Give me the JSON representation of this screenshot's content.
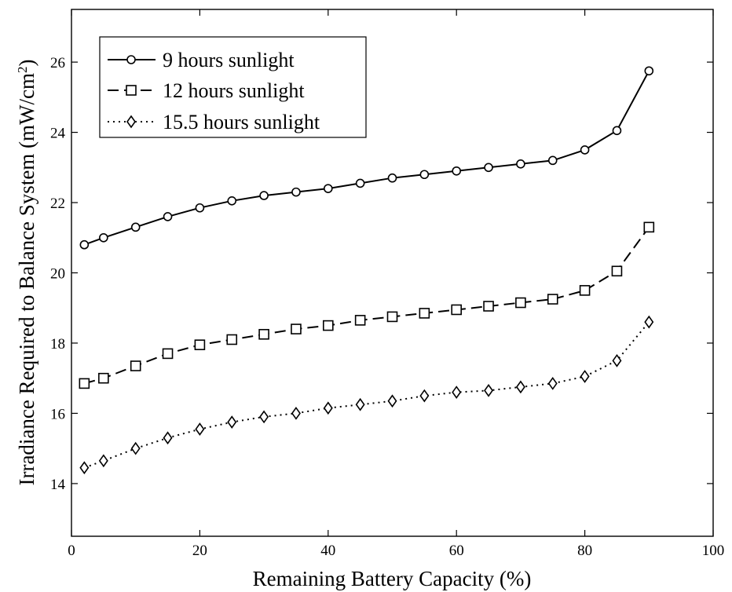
{
  "chart_data": {
    "type": "line",
    "title": "",
    "xlabel": "Remaining Battery Capacity (%)",
    "ylabel_main": "Irradiance Required to Balance System (mW/cm",
    "ylabel_sup": "2",
    "ylabel_close": ")",
    "xlim": [
      0,
      100
    ],
    "ylim": [
      12.5,
      27.5
    ],
    "xticks": [
      0,
      20,
      40,
      60,
      80,
      100
    ],
    "yticks": [
      14,
      16,
      18,
      20,
      22,
      24,
      26
    ],
    "grid": false,
    "legend_position": "top-left",
    "x": [
      2,
      5,
      10,
      15,
      20,
      25,
      30,
      35,
      40,
      45,
      50,
      55,
      60,
      65,
      70,
      75,
      80,
      85,
      90
    ],
    "series": [
      {
        "name": "9 hours sunlight",
        "line": "solid",
        "marker": "circle",
        "values": [
          20.8,
          21.0,
          21.3,
          21.6,
          21.85,
          22.05,
          22.2,
          22.3,
          22.4,
          22.55,
          22.7,
          22.8,
          22.9,
          23.0,
          23.1,
          23.2,
          23.5,
          24.05,
          25.75
        ]
      },
      {
        "name": "12 hours sunlight",
        "line": "dashed",
        "marker": "square",
        "values": [
          16.85,
          17.0,
          17.35,
          17.7,
          17.95,
          18.1,
          18.25,
          18.4,
          18.5,
          18.65,
          18.75,
          18.85,
          18.95,
          19.05,
          19.15,
          19.25,
          19.5,
          20.05,
          21.3
        ]
      },
      {
        "name": "15.5 hours sunlight",
        "line": "dotted",
        "marker": "diamond",
        "values": [
          14.45,
          14.65,
          15.0,
          15.3,
          15.55,
          15.75,
          15.9,
          16.0,
          16.15,
          16.25,
          16.35,
          16.5,
          16.6,
          16.65,
          16.75,
          16.85,
          17.05,
          17.5,
          18.6
        ]
      }
    ]
  }
}
